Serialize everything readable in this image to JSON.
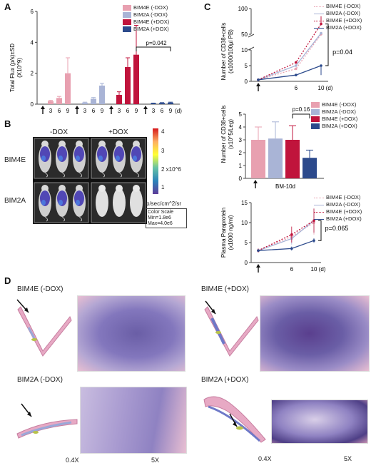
{
  "panels": {
    "A": {
      "label": "A",
      "ylabel_line1": "Total Flux (p/s)±SD",
      "ylabel_line2": "(X10^9)",
      "yticks": [
        "0",
        "2",
        "4",
        "6"
      ],
      "day_unit": "(d)",
      "pvalue": "p=0.042",
      "legend": [
        "BIM4E (-DOX)",
        "BIM2A (-DOX)",
        "BIM4E (+DOX)",
        "BIM2A (+DOX)"
      ],
      "chart_data": {
        "type": "bar",
        "categories": [
          "3",
          "6",
          "9"
        ],
        "ylim": [
          0,
          6
        ],
        "series": [
          {
            "name": "BIM4E (-DOX)",
            "values": [
              0.2,
              0.4,
              2.0
            ],
            "err": [
              0.05,
              0.1,
              1.0
            ]
          },
          {
            "name": "BIM2A (-DOX)",
            "values": [
              0.1,
              0.35,
              1.2
            ],
            "err": [
              0.03,
              0.08,
              0.15
            ]
          },
          {
            "name": "BIM4E (+DOX)",
            "values": [
              0.6,
              2.4,
              3.2
            ],
            "err": [
              0.2,
              0.6,
              1.9
            ]
          },
          {
            "name": "BIM2A (+DOX)",
            "values": [
              0.05,
              0.08,
              0.1
            ],
            "err": [
              0.02,
              0.02,
              0.03
            ]
          }
        ]
      }
    },
    "B": {
      "label": "B",
      "col_minus": "-DOX",
      "col_plus": "+DOX",
      "row1": "BIM4E",
      "row2": "BIM2A",
      "scale_ticks": [
        "4",
        "3",
        "2 x10^6",
        "1"
      ],
      "scale_unit": "p/sec/cm^2/sr",
      "color_scale_title": "Color Scale",
      "color_scale_min": "Min=1.8e6",
      "color_scale_max": "Max=4.0e6"
    },
    "C1": {
      "label": "C",
      "ylabel_line1": "Number of CD38+cells",
      "ylabel_line2": "(x1000/100µl PB)",
      "yticks": [
        "0",
        "5",
        "10",
        "50",
        "100"
      ],
      "xticks": [
        "6",
        "10 (d)"
      ],
      "pvalue": "p=0.04",
      "legend": [
        "BIM4E (-DOX)",
        "BIM2A (-DOX)",
        "BIM4E (+DOX)",
        "BIM2A (+DOX)"
      ],
      "chart_data": {
        "type": "line",
        "x": [
          0,
          6,
          10
        ],
        "series": [
          {
            "name": "BIM4E (-DOX)",
            "values": [
              0.5,
              4,
              50
            ]
          },
          {
            "name": "BIM2A (-DOX)",
            "values": [
              0.5,
              5,
              52
            ]
          },
          {
            "name": "BIM4E (+DOX)",
            "values": [
              0.5,
              6,
              70
            ]
          },
          {
            "name": "BIM2A (+DOX)",
            "values": [
              0.5,
              2,
              5
            ]
          }
        ]
      }
    },
    "C2": {
      "ylabel_line1": "Number of CD38+cells",
      "ylabel_line2": "(x10^5/Leg)",
      "yticks": [
        "0",
        "1",
        "2",
        "3",
        "4",
        "5"
      ],
      "xlabel": "BM-10d",
      "pvalue": "p=0.16",
      "legend": [
        "BIM4E (-DOX)",
        "BIM2A (-DOX)",
        "BIM4E (+DOX)",
        "BIM2A (+DOX)"
      ],
      "chart_data": {
        "type": "bar",
        "categories": [
          "BM-10d"
        ],
        "ylim": [
          0,
          5
        ],
        "series": [
          {
            "name": "BIM4E (-DOX)",
            "values": [
              3.0
            ],
            "err": [
              1.0
            ]
          },
          {
            "name": "BIM2A (-DOX)",
            "values": [
              3.1
            ],
            "err": [
              1.3
            ]
          },
          {
            "name": "BIM4E (+DOX)",
            "values": [
              3.0
            ],
            "err": [
              1.1
            ]
          },
          {
            "name": "BIM2A (+DOX)",
            "values": [
              1.6
            ],
            "err": [
              0.6
            ]
          }
        ]
      }
    },
    "C3": {
      "ylabel_line1": "Plasma Paraprotein",
      "ylabel_line2": "(x1000 ng/ml)",
      "yticks": [
        "0",
        "5",
        "10",
        "15"
      ],
      "xticks": [
        "6",
        "10 (d)"
      ],
      "pvalue": "p=0.065",
      "legend": [
        "BIM4E (-DOX)",
        "BIM2A (-DOX)",
        "BIM4E (+DOX)",
        "BIM2A (+DOX)"
      ],
      "chart_data": {
        "type": "line",
        "x": [
          0,
          6,
          10
        ],
        "ylim": [
          0,
          15
        ],
        "series": [
          {
            "name": "BIM4E (-DOX)",
            "values": [
              3,
              6.5,
              10
            ],
            "err": [
              0.5,
              1.5,
              3
            ]
          },
          {
            "name": "BIM2A (-DOX)",
            "values": [
              3,
              6,
              10.5
            ],
            "err": [
              0.5,
              1.5,
              3
            ]
          },
          {
            "name": "BIM4E (+DOX)",
            "values": [
              3,
              7,
              10.5
            ],
            "err": [
              0.5,
              2,
              3
            ]
          },
          {
            "name": "BIM2A (+DOX)",
            "values": [
              3,
              3.5,
              5.5
            ],
            "err": [
              0.3,
              0.5,
              0.6
            ]
          }
        ]
      }
    },
    "D": {
      "label": "D",
      "tl": "BIM4E (-DOX)",
      "tr": "BIM4E (+DOX)",
      "bl": "BIM2A (-DOX)",
      "br": "BIM2A (+DOX)",
      "mag_low": "0.4X",
      "mag_high": "5X"
    }
  },
  "colors": {
    "bim4e_minus": "#e8a0b0",
    "bim2a_minus": "#a9b4d6",
    "bim4e_plus": "#c0143c",
    "bim2a_plus": "#2c4a8c"
  }
}
